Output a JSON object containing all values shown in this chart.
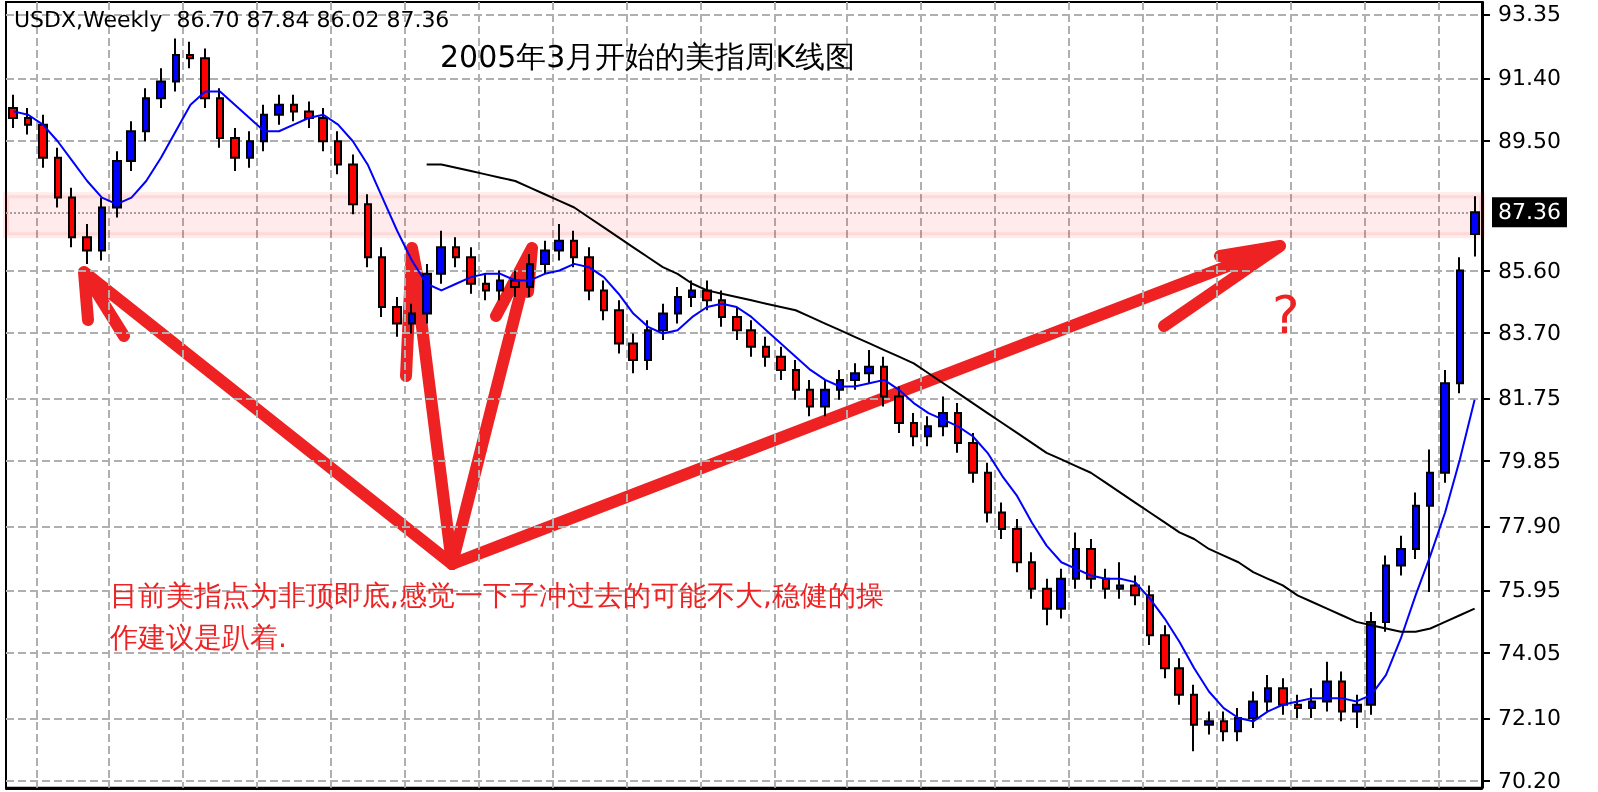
{
  "chart_data": {
    "type": "candlestick",
    "title": "2005年3月开始的美指周K线图",
    "annotations": [
      "USDX,Weekly  86.70 87.84 86.02 87.36",
      "?",
      "目前美指点为非顶即底,感觉一下子冲过去的可能不大,稳健的操作建议是趴着."
    ],
    "categories": [
      null,
      null,
      null,
      null,
      null,
      null,
      null,
      null,
      null,
      null,
      null,
      null,
      null,
      null,
      null,
      null,
      null,
      null,
      null,
      null,
      null,
      null,
      null,
      null,
      null,
      null,
      null,
      null,
      null,
      null,
      null,
      null,
      null,
      null,
      null,
      null,
      null,
      null,
      null,
      null,
      null,
      null,
      null,
      null,
      null,
      null,
      null,
      null,
      null,
      null,
      null,
      null,
      null,
      null,
      null,
      null,
      null,
      null,
      null,
      null,
      null,
      null,
      null,
      null,
      null,
      null,
      null,
      null,
      null,
      null,
      null,
      null,
      null,
      null,
      null,
      null,
      null,
      null,
      null,
      null,
      null,
      null,
      null,
      null,
      null,
      null,
      null,
      null,
      null,
      null,
      null,
      null,
      null,
      null,
      null,
      null,
      null,
      null,
      null,
      null
    ],
    "ohlc": [
      [
        90.5,
        90.9,
        89.9,
        90.2
      ],
      [
        90.2,
        90.5,
        89.7,
        90.0
      ],
      [
        90.0,
        90.3,
        88.7,
        89.0
      ],
      [
        89.0,
        89.3,
        87.5,
        87.8
      ],
      [
        87.8,
        88.1,
        86.3,
        86.6
      ],
      [
        86.6,
        87.0,
        85.8,
        86.2
      ],
      [
        86.2,
        87.8,
        85.9,
        87.5
      ],
      [
        87.5,
        89.2,
        87.2,
        88.9
      ],
      [
        88.9,
        90.1,
        88.6,
        89.8
      ],
      [
        89.8,
        91.1,
        89.5,
        90.8
      ],
      [
        90.8,
        91.7,
        90.5,
        91.3
      ],
      [
        91.3,
        92.6,
        91.0,
        92.1
      ],
      [
        92.1,
        92.5,
        91.7,
        92.0
      ],
      [
        92.0,
        92.3,
        90.5,
        90.8
      ],
      [
        90.8,
        91.1,
        89.3,
        89.6
      ],
      [
        89.6,
        89.9,
        88.6,
        89.0
      ],
      [
        89.0,
        89.8,
        88.7,
        89.5
      ],
      [
        89.5,
        90.6,
        89.2,
        90.3
      ],
      [
        90.3,
        90.9,
        90.0,
        90.6
      ],
      [
        90.6,
        90.9,
        90.1,
        90.4
      ],
      [
        90.4,
        90.7,
        89.9,
        90.2
      ],
      [
        90.2,
        90.5,
        89.2,
        89.5
      ],
      [
        89.5,
        89.8,
        88.5,
        88.8
      ],
      [
        88.8,
        89.1,
        87.3,
        87.6
      ],
      [
        87.6,
        87.9,
        85.7,
        86.0
      ],
      [
        86.0,
        86.3,
        84.2,
        84.5
      ],
      [
        84.5,
        84.8,
        83.6,
        84.0
      ],
      [
        84.0,
        84.6,
        83.7,
        84.3
      ],
      [
        84.3,
        85.8,
        84.0,
        85.5
      ],
      [
        85.5,
        86.8,
        85.2,
        86.3
      ],
      [
        86.3,
        86.6,
        85.7,
        86.0
      ],
      [
        86.0,
        86.3,
        84.9,
        85.2
      ],
      [
        85.2,
        85.5,
        84.7,
        85.0
      ],
      [
        85.0,
        85.6,
        84.7,
        85.3
      ],
      [
        85.3,
        85.6,
        84.8,
        85.1
      ],
      [
        85.1,
        86.1,
        84.8,
        85.8
      ],
      [
        85.8,
        86.5,
        85.5,
        86.2
      ],
      [
        86.2,
        87.0,
        85.9,
        86.5
      ],
      [
        86.5,
        86.8,
        85.7,
        86.0
      ],
      [
        86.0,
        86.3,
        84.7,
        85.0
      ],
      [
        85.0,
        85.3,
        84.1,
        84.4
      ],
      [
        84.4,
        84.7,
        83.1,
        83.4
      ],
      [
        83.4,
        83.7,
        82.5,
        82.9
      ],
      [
        82.9,
        84.1,
        82.6,
        83.8
      ],
      [
        83.8,
        84.6,
        83.5,
        84.3
      ],
      [
        84.3,
        85.1,
        84.0,
        84.8
      ],
      [
        84.8,
        85.3,
        84.5,
        85.0
      ],
      [
        85.0,
        85.3,
        84.4,
        84.7
      ],
      [
        84.7,
        85.0,
        83.9,
        84.2
      ],
      [
        84.2,
        84.5,
        83.5,
        83.8
      ],
      [
        83.8,
        84.1,
        83.0,
        83.3
      ],
      [
        83.3,
        83.6,
        82.7,
        83.0
      ],
      [
        83.0,
        83.3,
        82.3,
        82.6
      ],
      [
        82.6,
        82.9,
        81.7,
        82.0
      ],
      [
        82.0,
        82.3,
        81.2,
        81.5
      ],
      [
        81.5,
        82.3,
        81.2,
        82.0
      ],
      [
        82.0,
        82.6,
        81.7,
        82.3
      ],
      [
        82.3,
        82.8,
        82.0,
        82.5
      ],
      [
        82.5,
        83.2,
        82.2,
        82.7
      ],
      [
        82.7,
        83.0,
        81.5,
        81.8
      ],
      [
        81.8,
        82.1,
        80.7,
        81.0
      ],
      [
        81.0,
        81.3,
        80.3,
        80.6
      ],
      [
        80.6,
        81.2,
        80.3,
        80.9
      ],
      [
        80.9,
        81.8,
        80.6,
        81.3
      ],
      [
        81.3,
        81.6,
        80.1,
        80.4
      ],
      [
        80.4,
        80.7,
        79.2,
        79.5
      ],
      [
        79.5,
        79.8,
        78.0,
        78.3
      ],
      [
        78.3,
        78.6,
        77.5,
        77.8
      ],
      [
        77.8,
        78.1,
        76.5,
        76.8
      ],
      [
        76.8,
        77.1,
        75.7,
        76.0
      ],
      [
        76.0,
        76.3,
        74.9,
        75.4
      ],
      [
        75.4,
        76.6,
        75.1,
        76.3
      ],
      [
        76.3,
        77.7,
        76.0,
        77.2
      ],
      [
        77.2,
        77.5,
        76.0,
        76.3
      ],
      [
        76.3,
        76.6,
        75.7,
        76.0
      ],
      [
        76.0,
        76.8,
        75.7,
        76.1
      ],
      [
        76.1,
        76.4,
        75.5,
        75.8
      ],
      [
        75.8,
        76.1,
        74.3,
        74.6
      ],
      [
        74.6,
        74.9,
        73.3,
        73.6
      ],
      [
        73.6,
        73.9,
        72.5,
        72.8
      ],
      [
        72.8,
        73.1,
        71.1,
        71.9
      ],
      [
        71.9,
        72.3,
        71.6,
        72.0
      ],
      [
        72.0,
        72.3,
        71.4,
        71.7
      ],
      [
        71.7,
        72.4,
        71.4,
        72.1
      ],
      [
        72.1,
        72.9,
        71.8,
        72.6
      ],
      [
        72.6,
        73.4,
        72.3,
        73.0
      ],
      [
        73.0,
        73.3,
        72.2,
        72.5
      ],
      [
        72.5,
        72.8,
        72.1,
        72.4
      ],
      [
        72.4,
        73.0,
        72.1,
        72.6
      ],
      [
        72.6,
        73.8,
        72.3,
        73.2
      ],
      [
        73.2,
        73.5,
        72.0,
        72.3
      ],
      [
        72.3,
        72.8,
        71.8,
        72.5
      ],
      [
        72.5,
        75.3,
        72.2,
        75.0
      ],
      [
        75.0,
        77.0,
        74.7,
        76.7
      ],
      [
        76.7,
        77.6,
        76.4,
        77.2
      ],
      [
        77.2,
        78.9,
        76.9,
        78.5
      ],
      [
        78.5,
        80.2,
        75.9,
        79.5
      ],
      [
        79.5,
        82.6,
        79.2,
        82.2
      ],
      [
        82.2,
        86.0,
        81.9,
        85.6
      ],
      [
        86.7,
        87.84,
        86.02,
        87.36
      ]
    ],
    "colors": [
      "#ff0000",
      "#ff0000",
      "#ff0000",
      "#ff0000",
      "#ff0000",
      "#ff0000",
      "#0000ff",
      "#0000ff",
      "#0000ff",
      "#0000ff",
      "#0000ff",
      "#0000ff",
      "#ff0000",
      "#ff0000",
      "#ff0000",
      "#ff0000",
      "#0000ff",
      "#0000ff",
      "#0000ff",
      "#ff0000",
      "#ff0000",
      "#ff0000",
      "#ff0000",
      "#ff0000",
      "#ff0000",
      "#ff0000",
      "#ff0000",
      "#0000ff",
      "#0000ff",
      "#0000ff",
      "#ff0000",
      "#ff0000",
      "#ff0000",
      "#0000ff",
      "#ff0000",
      "#0000ff",
      "#0000ff",
      "#0000ff",
      "#ff0000",
      "#ff0000",
      "#ff0000",
      "#ff0000",
      "#ff0000",
      "#0000ff",
      "#0000ff",
      "#0000ff",
      "#0000ff",
      "#ff0000",
      "#ff0000",
      "#ff0000",
      "#ff0000",
      "#ff0000",
      "#ff0000",
      "#ff0000",
      "#ff0000",
      "#0000ff",
      "#0000ff",
      "#0000ff",
      "#0000ff",
      "#ff0000",
      "#ff0000",
      "#ff0000",
      "#0000ff",
      "#0000ff",
      "#ff0000",
      "#ff0000",
      "#ff0000",
      "#ff0000",
      "#ff0000",
      "#ff0000",
      "#ff0000",
      "#0000ff",
      "#0000ff",
      "#ff0000",
      "#ff0000",
      "#0000ff",
      "#ff0000",
      "#ff0000",
      "#ff0000",
      "#ff0000",
      "#ff0000",
      "#0000ff",
      "#ff0000",
      "#0000ff",
      "#0000ff",
      "#0000ff",
      "#ff0000",
      "#ff0000",
      "#0000ff",
      "#0000ff",
      "#ff0000",
      "#0000ff",
      "#0000ff",
      "#0000ff",
      "#0000ff",
      "#0000ff",
      "#0000ff",
      "#0000ff",
      "#0000ff",
      "#0000ff"
    ],
    "series": [
      {
        "type": "line",
        "color": "#0000ff",
        "values": [
          90.4,
          90.3,
          90.0,
          89.5,
          88.9,
          88.3,
          87.8,
          87.6,
          87.8,
          88.3,
          89.0,
          89.8,
          90.6,
          91.0,
          91.0,
          90.6,
          90.2,
          89.8,
          89.8,
          90.0,
          90.2,
          90.3,
          90.0,
          89.5,
          88.8,
          87.8,
          86.8,
          85.9,
          85.2,
          85.0,
          85.2,
          85.4,
          85.5,
          85.5,
          85.3,
          85.3,
          85.5,
          85.6,
          85.8,
          85.7,
          85.4,
          84.9,
          84.3,
          83.9,
          83.7,
          83.8,
          84.2,
          84.5,
          84.6,
          84.5,
          84.2,
          83.8,
          83.4,
          83.0,
          82.6,
          82.3,
          82.1,
          82.1,
          82.2,
          82.3,
          82.0,
          81.6,
          81.3,
          81.1,
          80.9,
          80.6,
          80.1,
          79.4,
          78.8,
          78.0,
          77.3,
          76.8,
          76.6,
          76.4,
          76.3,
          76.3,
          76.2,
          75.7,
          75.1,
          74.4,
          73.6,
          72.9,
          72.4,
          72.1,
          72.0,
          72.3,
          72.5,
          72.6,
          72.7,
          72.7,
          72.7,
          72.6,
          72.8,
          73.4,
          74.5,
          75.8,
          77.0,
          78.3,
          79.9,
          81.7
        ]
      },
      {
        "type": "line",
        "color": "#000000",
        "values": [
          null,
          null,
          null,
          null,
          null,
          null,
          null,
          null,
          null,
          null,
          null,
          null,
          null,
          null,
          null,
          null,
          null,
          null,
          null,
          null,
          null,
          null,
          null,
          null,
          null,
          null,
          null,
          null,
          88.8,
          88.8,
          88.7,
          88.6,
          88.5,
          88.4,
          88.3,
          88.1,
          87.9,
          87.7,
          87.5,
          87.2,
          86.9,
          86.6,
          86.3,
          86.0,
          85.7,
          85.5,
          85.2,
          85.0,
          84.9,
          84.8,
          84.7,
          84.6,
          84.5,
          84.4,
          84.2,
          84.0,
          83.8,
          83.6,
          83.4,
          83.2,
          83.0,
          82.8,
          82.5,
          82.2,
          81.9,
          81.6,
          81.3,
          81.0,
          80.7,
          80.4,
          80.1,
          79.9,
          79.7,
          79.5,
          79.2,
          78.9,
          78.6,
          78.3,
          78.0,
          77.7,
          77.5,
          77.2,
          77.0,
          76.8,
          76.5,
          76.3,
          76.1,
          75.8,
          75.6,
          75.4,
          75.2,
          75.0,
          74.9,
          74.8,
          74.7,
          74.7,
          74.8,
          75.0,
          75.2,
          75.4
        ]
      }
    ],
    "ylim": [
      70.0,
      93.7
    ],
    "yticks": [
      {
        "value": 70.2,
        "label": "70.20"
      },
      {
        "value": 72.1,
        "label": "72.10"
      },
      {
        "value": 74.05,
        "label": "74.05"
      },
      {
        "value": 75.95,
        "label": "75.95"
      },
      {
        "value": 77.9,
        "label": "77.90"
      },
      {
        "value": 79.85,
        "label": "79.85"
      },
      {
        "value": 81.75,
        "label": "81.75"
      },
      {
        "value": 83.7,
        "label": "83.70"
      },
      {
        "value": 85.6,
        "label": "85.60"
      },
      {
        "value": 89.5,
        "label": "89.50"
      },
      {
        "value": 91.4,
        "label": "91.40"
      },
      {
        "value": 93.35,
        "label": "93.35"
      }
    ],
    "ref_lines": [
      {
        "axis": "y",
        "value": 87.36,
        "label": "87.36",
        "color": "#a0a0a0",
        "line_style": "dotted"
      }
    ],
    "bands": [
      {
        "axis": "y",
        "from": 86.66,
        "to": 87.87,
        "color": "#ff0000"
      }
    ],
    "grid": true,
    "tick_labels": "y"
  }
}
